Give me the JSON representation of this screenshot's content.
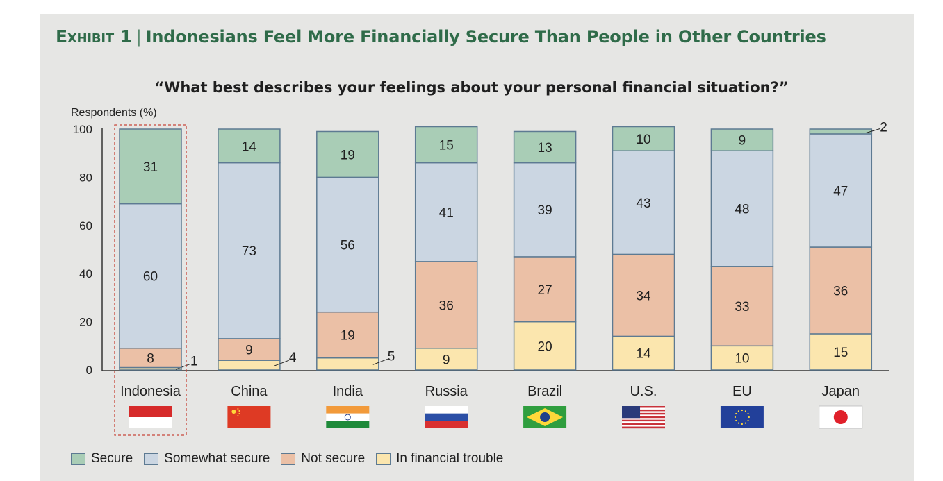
{
  "header": {
    "exhibit_label": "Exhibit 1",
    "title": "Indonesians Feel More Financially Secure Than People in Other Countries"
  },
  "chart_data": {
    "type": "bar",
    "stacked": true,
    "title": "“What best describes your feelings about your personal financial situation?”",
    "ylabel": "Respondents (%)",
    "xlabel": "",
    "ylim": [
      0,
      100
    ],
    "yticks": [
      0,
      20,
      40,
      60,
      80,
      100
    ],
    "grid": false,
    "legend_position": "bottom-left",
    "categories": [
      "Indonesia",
      "China",
      "India",
      "Russia",
      "Brazil",
      "U.S.",
      "EU",
      "Japan"
    ],
    "highlighted_category": "Indonesia",
    "series": [
      {
        "name": "In financial trouble",
        "color": "#fbe6ae",
        "values": [
          1,
          4,
          5,
          9,
          20,
          14,
          10,
          15
        ]
      },
      {
        "name": "Not secure",
        "color": "#ebc0a6",
        "values": [
          8,
          9,
          19,
          36,
          27,
          34,
          33,
          36
        ]
      },
      {
        "name": "Somewhat secure",
        "color": "#cbd6e2",
        "values": [
          60,
          73,
          56,
          41,
          39,
          43,
          48,
          47
        ]
      },
      {
        "name": "Secure",
        "color": "#a9cdb6",
        "values": [
          31,
          14,
          19,
          15,
          13,
          10,
          9,
          2
        ]
      }
    ],
    "legend_order": [
      "Secure",
      "Somewhat secure",
      "Not secure",
      "In financial trouble"
    ],
    "outside_labels": [
      {
        "category": "Indonesia",
        "series": "In financial trouble",
        "value": "1"
      },
      {
        "category": "China",
        "series": "In financial trouble",
        "value": "4"
      },
      {
        "category": "India",
        "series": "In financial trouble",
        "value": "5"
      },
      {
        "category": "Japan",
        "series": "Secure",
        "value": "2"
      }
    ]
  },
  "flags": [
    "indonesia-flag-icon",
    "china-flag-icon",
    "india-flag-icon",
    "russia-flag-icon",
    "brazil-flag-icon",
    "us-flag-icon",
    "eu-flag-icon",
    "japan-flag-icon"
  ],
  "colors": {
    "title_green": "#2f6b49",
    "bar_border": "#5d7a92",
    "highlight_border": "#c8473a",
    "panel_bg": "#e6e6e4"
  }
}
